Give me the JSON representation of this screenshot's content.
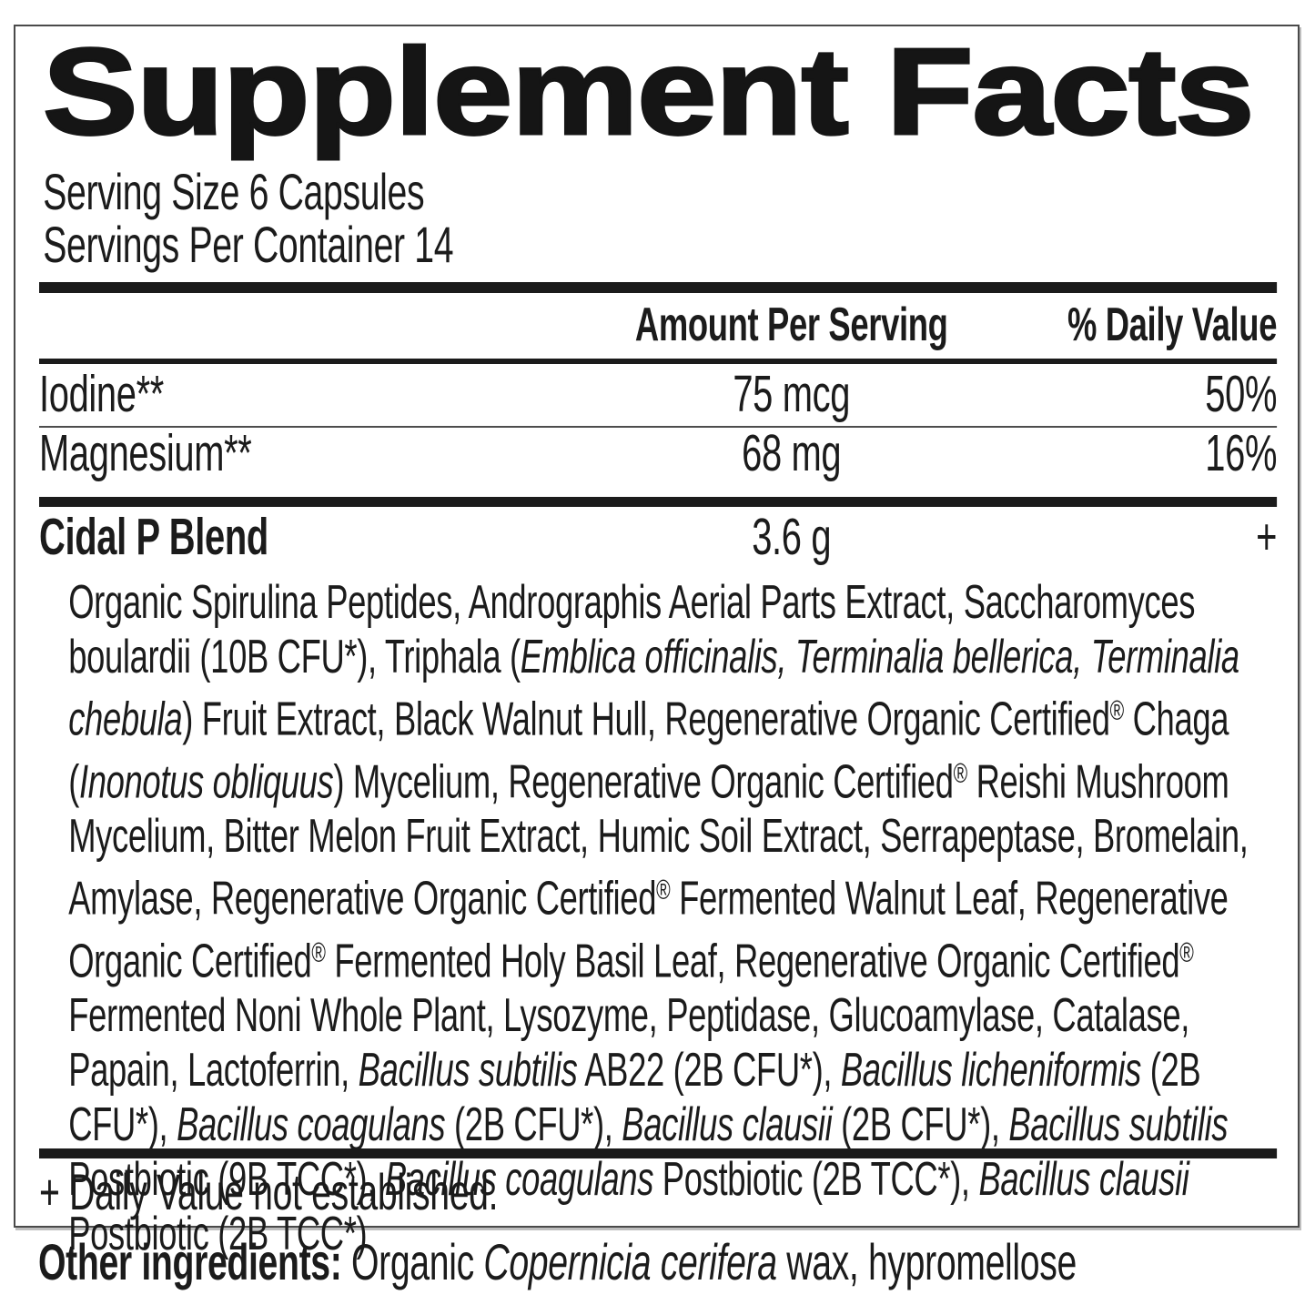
{
  "label": {
    "title": "Supplement Facts",
    "serving_size": "Serving Size 6 Capsules",
    "servings_per_container": "Servings Per Container 14",
    "columns": {
      "amount": "Amount Per Serving",
      "daily_value": "% Daily Value"
    },
    "nutrients": [
      {
        "name": "Iodine**",
        "amount": "75 mcg",
        "daily_value": "50%"
      },
      {
        "name": "Magnesium**",
        "amount": "68 mg",
        "daily_value": "16%"
      }
    ],
    "blend": {
      "name": "Cidal P Blend",
      "amount": "3.6 g",
      "daily_value": "+"
    },
    "blend_ingredients": [
      {
        "text": "Organic Spirulina Peptides, Andrographis Aerial Parts Extract, Saccharomyces boulardii (10B CFU*), Triphala ("
      },
      {
        "text": "Emblica officinalis, Terminalia bellerica, Terminalia chebula",
        "italic": true
      },
      {
        "text": ") Fruit Extract, Black Walnut Hull, Regenerative Organic Certified"
      },
      {
        "text": "®",
        "sup": true
      },
      {
        "text": " Chaga ("
      },
      {
        "text": "Inonotus obliquus",
        "italic": true
      },
      {
        "text": ") Mycelium, Regenerative Organic Certified"
      },
      {
        "text": "®",
        "sup": true
      },
      {
        "text": " Reishi Mushroom Mycelium, Bitter Melon Fruit Extract, Humic Soil Extract, Serrapeptase, Bromelain, Amylase, Regenerative Organic Certified"
      },
      {
        "text": "®",
        "sup": true
      },
      {
        "text": " Fermented Walnut Leaf, Regenerative Organic Certified"
      },
      {
        "text": "®",
        "sup": true
      },
      {
        "text": " Fermented Holy Basil Leaf, Regenerative Organic Certified"
      },
      {
        "text": "®",
        "sup": true
      },
      {
        "text": " Fermented Noni Whole Plant, Lysozyme, Peptidase, Glucoamylase, Catalase, Papain, Lactoferrin, "
      },
      {
        "text": "Bacillus subtilis",
        "italic": true
      },
      {
        "text": " AB22 (2B CFU*), "
      },
      {
        "text": "Bacillus licheniformis",
        "italic": true
      },
      {
        "text": " (2B CFU*), "
      },
      {
        "text": "Bacillus coagulans",
        "italic": true
      },
      {
        "text": " (2B CFU*), "
      },
      {
        "text": "Bacillus clausii",
        "italic": true
      },
      {
        "text": " (2B CFU*), "
      },
      {
        "text": "Bacillus subtilis",
        "italic": true
      },
      {
        "text": " Postbiotic (9B TCC*), "
      },
      {
        "text": "Bacillus coagulans",
        "italic": true
      },
      {
        "text": " Postbiotic (2B TCC*), "
      },
      {
        "text": "Bacillus clausii",
        "italic": true
      },
      {
        "text": " Postbiotic (2B TCC*)"
      }
    ],
    "footnote": "+ Daily Value not established.",
    "other_ingredients": [
      {
        "text": "Other ingredients: ",
        "bold": true
      },
      {
        "text": "Organic "
      },
      {
        "text": "Copernicia cerifera",
        "italic": true
      },
      {
        "text": " wax, hypromellose"
      }
    ]
  },
  "colors": {
    "ink": "#1b1b1b",
    "rule": "#1b1b1b",
    "border": "#4a4a4a",
    "background": "#ffffff"
  }
}
